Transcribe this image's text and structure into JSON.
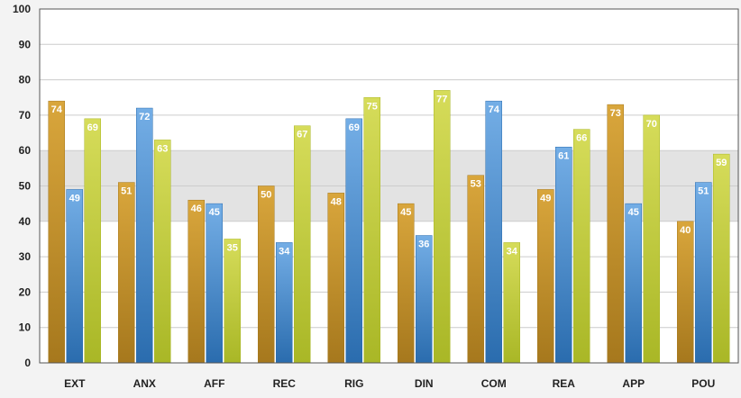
{
  "chart_data": {
    "type": "bar",
    "categories": [
      "EXT",
      "ANX",
      "AFF",
      "REC",
      "RIG",
      "DIN",
      "COM",
      "REA",
      "APP",
      "POU"
    ],
    "series": [
      {
        "values": [
          74,
          51,
          46,
          50,
          48,
          45,
          53,
          49,
          73,
          40
        ]
      },
      {
        "values": [
          49,
          72,
          45,
          34,
          69,
          36,
          74,
          61,
          45,
          51
        ]
      },
      {
        "values": [
          69,
          63,
          35,
          67,
          75,
          77,
          34,
          66,
          70,
          59
        ]
      }
    ],
    "ylim": [
      0,
      100
    ],
    "yticks": [
      0,
      10,
      20,
      30,
      40,
      50,
      60,
      70,
      80,
      90,
      100
    ],
    "highlight_band": [
      40,
      60
    ],
    "grid": true,
    "legend": "none",
    "colors": {
      "series_top": [
        "#d9a63c",
        "#74aee6",
        "#d6dc5a"
      ],
      "series_bottom": [
        "#a6781d",
        "#2a6cae",
        "#a9b726"
      ],
      "band": "#e3e3e3",
      "grid": "#cccccc",
      "plot_bg": "#ffffff"
    }
  }
}
